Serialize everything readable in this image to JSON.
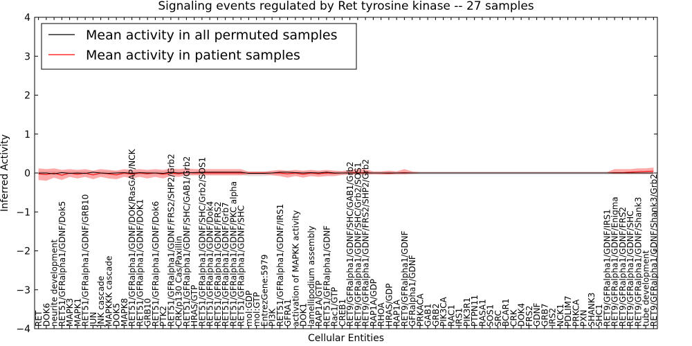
{
  "chart_data": {
    "type": "line",
    "title": "Signaling events regulated by Ret tyrosine kinase -- 27 samples",
    "xlabel": "Cellular Entities",
    "ylabel": "Inferred Activity",
    "ylim": [
      -4,
      4
    ],
    "yticks": [
      -4,
      -3,
      -2,
      -1,
      0,
      1,
      2,
      3,
      4
    ],
    "legend": {
      "placement": "top-left",
      "entries": [
        {
          "label": "Mean activity in all permuted samples",
          "color": "#000000"
        },
        {
          "label": "Mean activity in patient samples",
          "color": "#ff0000"
        }
      ]
    },
    "categories": [
      "RET",
      "DOK6",
      "neurite development",
      "RET51/GFRalpha1/GDNF/Dok5",
      "MAPK3",
      "MAPK1",
      "RET51/GFRalpha1/GDNF/GRB10",
      "JUN",
      "JNK cascade",
      "MAPKKK cascade",
      "DOK5",
      "MAPK8",
      "RET51/GFRalpha1/GDNF/DOK/RasGAP/NCK",
      "RET51/GFRalpha1/GDNF/DOK1",
      "GRB10",
      "RET51/GFRalpha1/GDNF/Dok6",
      "PTK2",
      "RET51/GFRalpha1/GDNF/FRS2/SHP2/Grb2",
      "CRK/p130 Cas/Paxillin",
      "RET51/GFRalpha1/GDNF/SHC/GAB1/Grb2",
      "HRAS/GTP",
      "RET51/GFRalpha1/GDNF/SHC/Grb2/SOS1",
      "RET51/GFRalpha1/GDNF/Dok4",
      "RET51/GFRalpha1/GDNF/FRS2",
      "RET51/GFRalpha1/GDNF/Grb7",
      "RET51/GFRalpha1/GDNF/PKC alpha",
      "RET51/GFRalpha1/GDNF/SHC",
      "mol:GDP",
      "mol:GTP",
      "EntrezGene:5979",
      "PI3K",
      "RET51/GFRalpha1/GDNF/IRS1",
      "GFRA1",
      "activation of MAPKK activity",
      "DOK1",
      "lamellipodium assembly",
      "RAP1A/GTP",
      "RET51/GFRalpha1/GDNF",
      "Rac1/GTP",
      "CREB1",
      "RET9/GFRalpha1/GDNF/SHC/GAB1/Grb2",
      "RET9/GFRalpha1/GDNF/SHC/Grb2/SOS1",
      "RET9/GFRalpha1/GDNF/FRS2/SHP2/Grb2",
      "RAP1A/GDP",
      "RHOA",
      "HRAS/GDP",
      "RAP1A",
      "RET9/GFRalpha1/GDNF",
      "GFRalpha1/GDNF",
      "PRKACA",
      "GAB1",
      "GRB2",
      "PIK3CA",
      "RAC1",
      "IRS1",
      "PIK3R1",
      "PTPN11",
      "RASA1",
      "SOS1",
      "SRC",
      "BCAR1",
      "CRK",
      "DOK4",
      "FRS2",
      "GDNF",
      "GRB7",
      "IRS2",
      "NCK1",
      "PDLIM7",
      "PRKCA",
      "PXN",
      "SHANK3",
      "SHC1",
      "RET9/GFRalpha1/GDNF/IRS1",
      "RET9/GFRalpha1/GDNF/Enigma",
      "RET9/GFRalpha1/GDNF/FRS2",
      "RET9/GFRalpha1/GDNF/SHC",
      "RET9/GFRalpha1/GDNF/Shank3",
      "tube development",
      "RET9/GFRalpha1/GDNF/Shank3/Grb2"
    ],
    "series": [
      {
        "name": "Mean activity in all permuted samples",
        "color": "#000000",
        "values": [
          0.0,
          0.0,
          -0.02,
          0.01,
          -0.01,
          0.0,
          -0.01,
          0.02,
          0.0,
          -0.01,
          0.0,
          0.01,
          -0.01,
          0.01,
          0.0,
          0.0,
          -0.01,
          0.02,
          0.0,
          0.01,
          0.01,
          0.02,
          0.02,
          0.02,
          0.02,
          0.02,
          0.02,
          -0.01,
          -0.01,
          -0.01,
          0.0,
          0.02,
          0.02,
          0.01,
          0.0,
          0.01,
          0.0,
          0.02,
          0.0,
          0.0,
          0.0,
          0.0,
          0.0,
          0.0,
          0.0,
          0.0,
          0.0,
          0.0,
          0.0,
          0.0,
          0.0,
          0.0,
          0.0,
          0.0,
          0.0,
          0.0,
          0.0,
          0.0,
          0.0,
          0.0,
          0.0,
          0.0,
          0.0,
          0.0,
          0.0,
          0.0,
          0.0,
          0.0,
          0.0,
          0.0,
          0.0,
          0.0,
          0.0,
          0.0,
          0.0,
          0.0,
          0.0,
          0.0,
          0.0,
          0.0
        ],
        "band": {
          "lower": [
            -0.05,
            -0.05,
            -0.05,
            -0.05,
            -0.05,
            -0.05,
            -0.05,
            -0.05,
            -0.05,
            -0.05,
            -0.05,
            -0.05,
            -0.05,
            -0.05,
            -0.05,
            -0.05,
            -0.05,
            -0.05,
            -0.05,
            -0.05,
            -0.05,
            -0.05,
            -0.05,
            -0.05,
            -0.05,
            -0.05,
            -0.05,
            -0.08,
            -0.08,
            -0.08,
            -0.05,
            -0.05,
            -0.05,
            -0.05,
            -0.05,
            -0.05,
            -0.05,
            -0.05,
            -0.05,
            -0.05,
            -0.04,
            -0.04,
            -0.04,
            -0.04,
            -0.04,
            -0.04,
            -0.04,
            -0.04,
            -0.04,
            -0.04,
            -0.04,
            -0.04,
            -0.04,
            -0.04,
            -0.04,
            -0.04,
            -0.04,
            -0.04,
            -0.04,
            -0.04,
            -0.04,
            -0.04,
            -0.04,
            -0.04,
            -0.04,
            -0.04,
            -0.04,
            -0.04,
            -0.04,
            -0.04,
            -0.04,
            -0.04,
            -0.04,
            -0.04,
            -0.04,
            -0.04,
            -0.04,
            -0.04,
            -0.04,
            -0.04
          ],
          "upper": [
            0.05,
            0.05,
            0.05,
            0.05,
            0.05,
            0.05,
            0.05,
            0.05,
            0.05,
            0.05,
            0.05,
            0.05,
            0.05,
            0.05,
            0.05,
            0.05,
            0.05,
            0.05,
            0.05,
            0.05,
            0.05,
            0.05,
            0.05,
            0.05,
            0.05,
            0.05,
            0.05,
            0.05,
            0.05,
            0.05,
            0.05,
            0.05,
            0.05,
            0.05,
            0.05,
            0.05,
            0.05,
            0.05,
            0.05,
            0.05,
            0.04,
            0.04,
            0.04,
            0.04,
            0.04,
            0.04,
            0.04,
            0.04,
            0.04,
            0.04,
            0.04,
            0.04,
            0.04,
            0.04,
            0.04,
            0.04,
            0.04,
            0.04,
            0.04,
            0.04,
            0.04,
            0.04,
            0.04,
            0.04,
            0.04,
            0.04,
            0.04,
            0.04,
            0.04,
            0.04,
            0.04,
            0.04,
            0.04,
            0.04,
            0.04,
            0.04,
            0.04,
            0.04,
            0.04,
            0.04
          ]
        }
      },
      {
        "name": "Mean activity in patient samples",
        "color": "#ff0000",
        "values": [
          -0.02,
          -0.04,
          0.0,
          -0.06,
          0.0,
          -0.03,
          0.0,
          -0.05,
          0.0,
          -0.02,
          -0.05,
          0.0,
          -0.03,
          0.0,
          -0.02,
          0.0,
          -0.03,
          0.0,
          -0.02,
          0.01,
          0.0,
          0.0,
          0.0,
          0.0,
          0.0,
          0.0,
          0.0,
          0.0,
          0.0,
          0.0,
          0.0,
          0.0,
          -0.02,
          0.0,
          -0.03,
          0.0,
          -0.02,
          0.0,
          -0.01,
          0.0,
          0.01,
          0.01,
          0.01,
          0.0,
          0.0,
          -0.01,
          0.0,
          0.01,
          0.0,
          0.0,
          0.0,
          0.0,
          0.0,
          0.0,
          0.0,
          0.0,
          0.0,
          0.0,
          0.0,
          0.0,
          0.0,
          0.0,
          0.0,
          0.0,
          0.0,
          0.0,
          0.0,
          0.0,
          0.0,
          0.0,
          0.0,
          0.0,
          0.0,
          0.0,
          0.01,
          0.01,
          0.02,
          0.03,
          0.04,
          0.05
        ],
        "band": {
          "lower": [
            -0.18,
            -0.2,
            -0.12,
            -0.18,
            -0.1,
            -0.14,
            -0.1,
            -0.16,
            -0.1,
            -0.14,
            -0.16,
            -0.1,
            -0.14,
            -0.1,
            -0.14,
            -0.1,
            -0.14,
            -0.08,
            -0.1,
            -0.06,
            -0.06,
            -0.06,
            -0.06,
            -0.06,
            -0.06,
            -0.06,
            -0.06,
            -0.04,
            -0.04,
            -0.04,
            -0.06,
            -0.08,
            -0.12,
            -0.08,
            -0.12,
            -0.08,
            -0.1,
            -0.08,
            -0.08,
            -0.05,
            -0.04,
            -0.04,
            -0.04,
            -0.03,
            -0.04,
            -0.04,
            -0.03,
            -0.03,
            -0.02,
            -0.01,
            -0.01,
            -0.01,
            -0.01,
            -0.01,
            -0.01,
            -0.01,
            -0.01,
            -0.01,
            -0.01,
            -0.01,
            -0.01,
            -0.01,
            -0.01,
            -0.01,
            -0.01,
            -0.01,
            -0.01,
            -0.01,
            -0.01,
            -0.01,
            -0.01,
            -0.01,
            -0.01,
            -0.01,
            -0.02,
            -0.02,
            -0.02,
            -0.02,
            -0.02,
            -0.02
          ],
          "upper": [
            0.12,
            0.1,
            0.12,
            0.08,
            0.1,
            0.08,
            0.1,
            0.06,
            0.1,
            0.08,
            0.06,
            0.1,
            0.08,
            0.1,
            0.08,
            0.1,
            0.08,
            0.12,
            0.1,
            0.12,
            0.1,
            0.1,
            0.1,
            0.1,
            0.1,
            0.1,
            0.1,
            0.03,
            0.03,
            0.03,
            0.06,
            0.08,
            0.06,
            0.08,
            0.06,
            0.08,
            0.06,
            0.08,
            0.06,
            0.05,
            0.08,
            0.1,
            0.1,
            0.04,
            0.04,
            0.06,
            0.04,
            0.1,
            0.04,
            0.02,
            0.02,
            0.02,
            0.02,
            0.02,
            0.02,
            0.02,
            0.02,
            0.02,
            0.02,
            0.02,
            0.02,
            0.02,
            0.02,
            0.02,
            0.02,
            0.02,
            0.02,
            0.02,
            0.02,
            0.02,
            0.02,
            0.02,
            0.02,
            0.02,
            0.1,
            0.1,
            0.1,
            0.12,
            0.12,
            0.14
          ]
        }
      }
    ]
  }
}
